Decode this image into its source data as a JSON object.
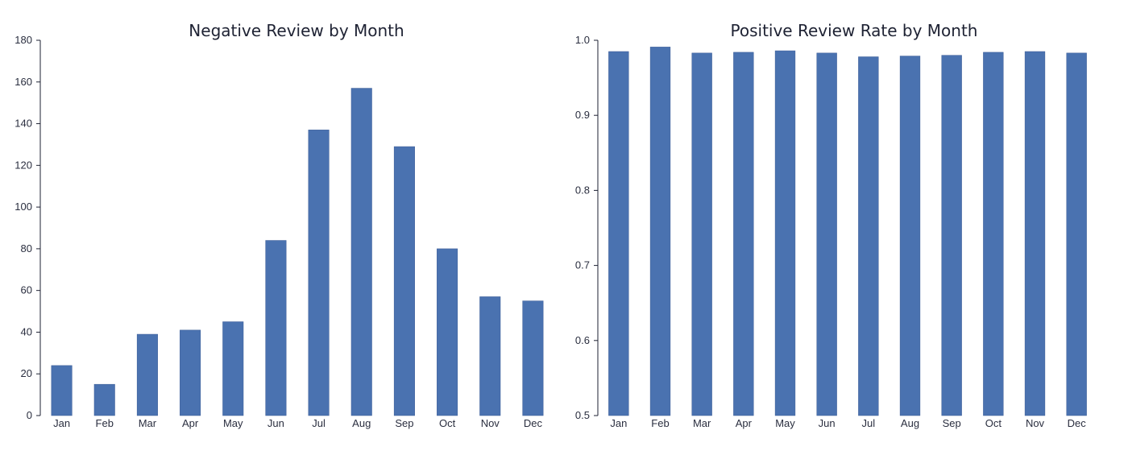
{
  "chart_data": [
    {
      "type": "bar",
      "title": "Negative Review by Month",
      "xlabel": "",
      "ylabel": "",
      "categories": [
        "Jan",
        "Feb",
        "Mar",
        "Apr",
        "May",
        "Jun",
        "Jul",
        "Aug",
        "Sep",
        "Oct",
        "Nov",
        "Dec"
      ],
      "values": [
        24,
        15,
        39,
        41,
        45,
        84,
        137,
        157,
        129,
        80,
        57,
        55
      ],
      "ylim": [
        0,
        180
      ],
      "yticks": [
        0,
        20,
        40,
        60,
        80,
        100,
        120,
        140,
        160,
        180
      ],
      "ytick_labels": [
        "0",
        "20",
        "40",
        "60",
        "80",
        "100",
        "120",
        "140",
        "160",
        "180"
      ],
      "bar_color": "#4a72b0",
      "grid": false,
      "legend": "none"
    },
    {
      "type": "bar",
      "title": "Positive Review Rate by Month",
      "xlabel": "",
      "ylabel": "",
      "categories": [
        "Jan",
        "Feb",
        "Mar",
        "Apr",
        "May",
        "Jun",
        "Jul",
        "Aug",
        "Sep",
        "Oct",
        "Nov",
        "Dec"
      ],
      "values": [
        0.985,
        0.991,
        0.983,
        0.984,
        0.986,
        0.983,
        0.978,
        0.979,
        0.98,
        0.984,
        0.985,
        0.983
      ],
      "ylim": [
        0.5,
        1.0
      ],
      "yticks": [
        0.5,
        0.6,
        0.7,
        0.8,
        0.9,
        1.0
      ],
      "ytick_labels": [
        "0.5",
        "0.6",
        "0.7",
        "0.8",
        "0.9",
        "1.0"
      ],
      "bar_color": "#4a72b0",
      "grid": false,
      "legend": "none"
    }
  ]
}
